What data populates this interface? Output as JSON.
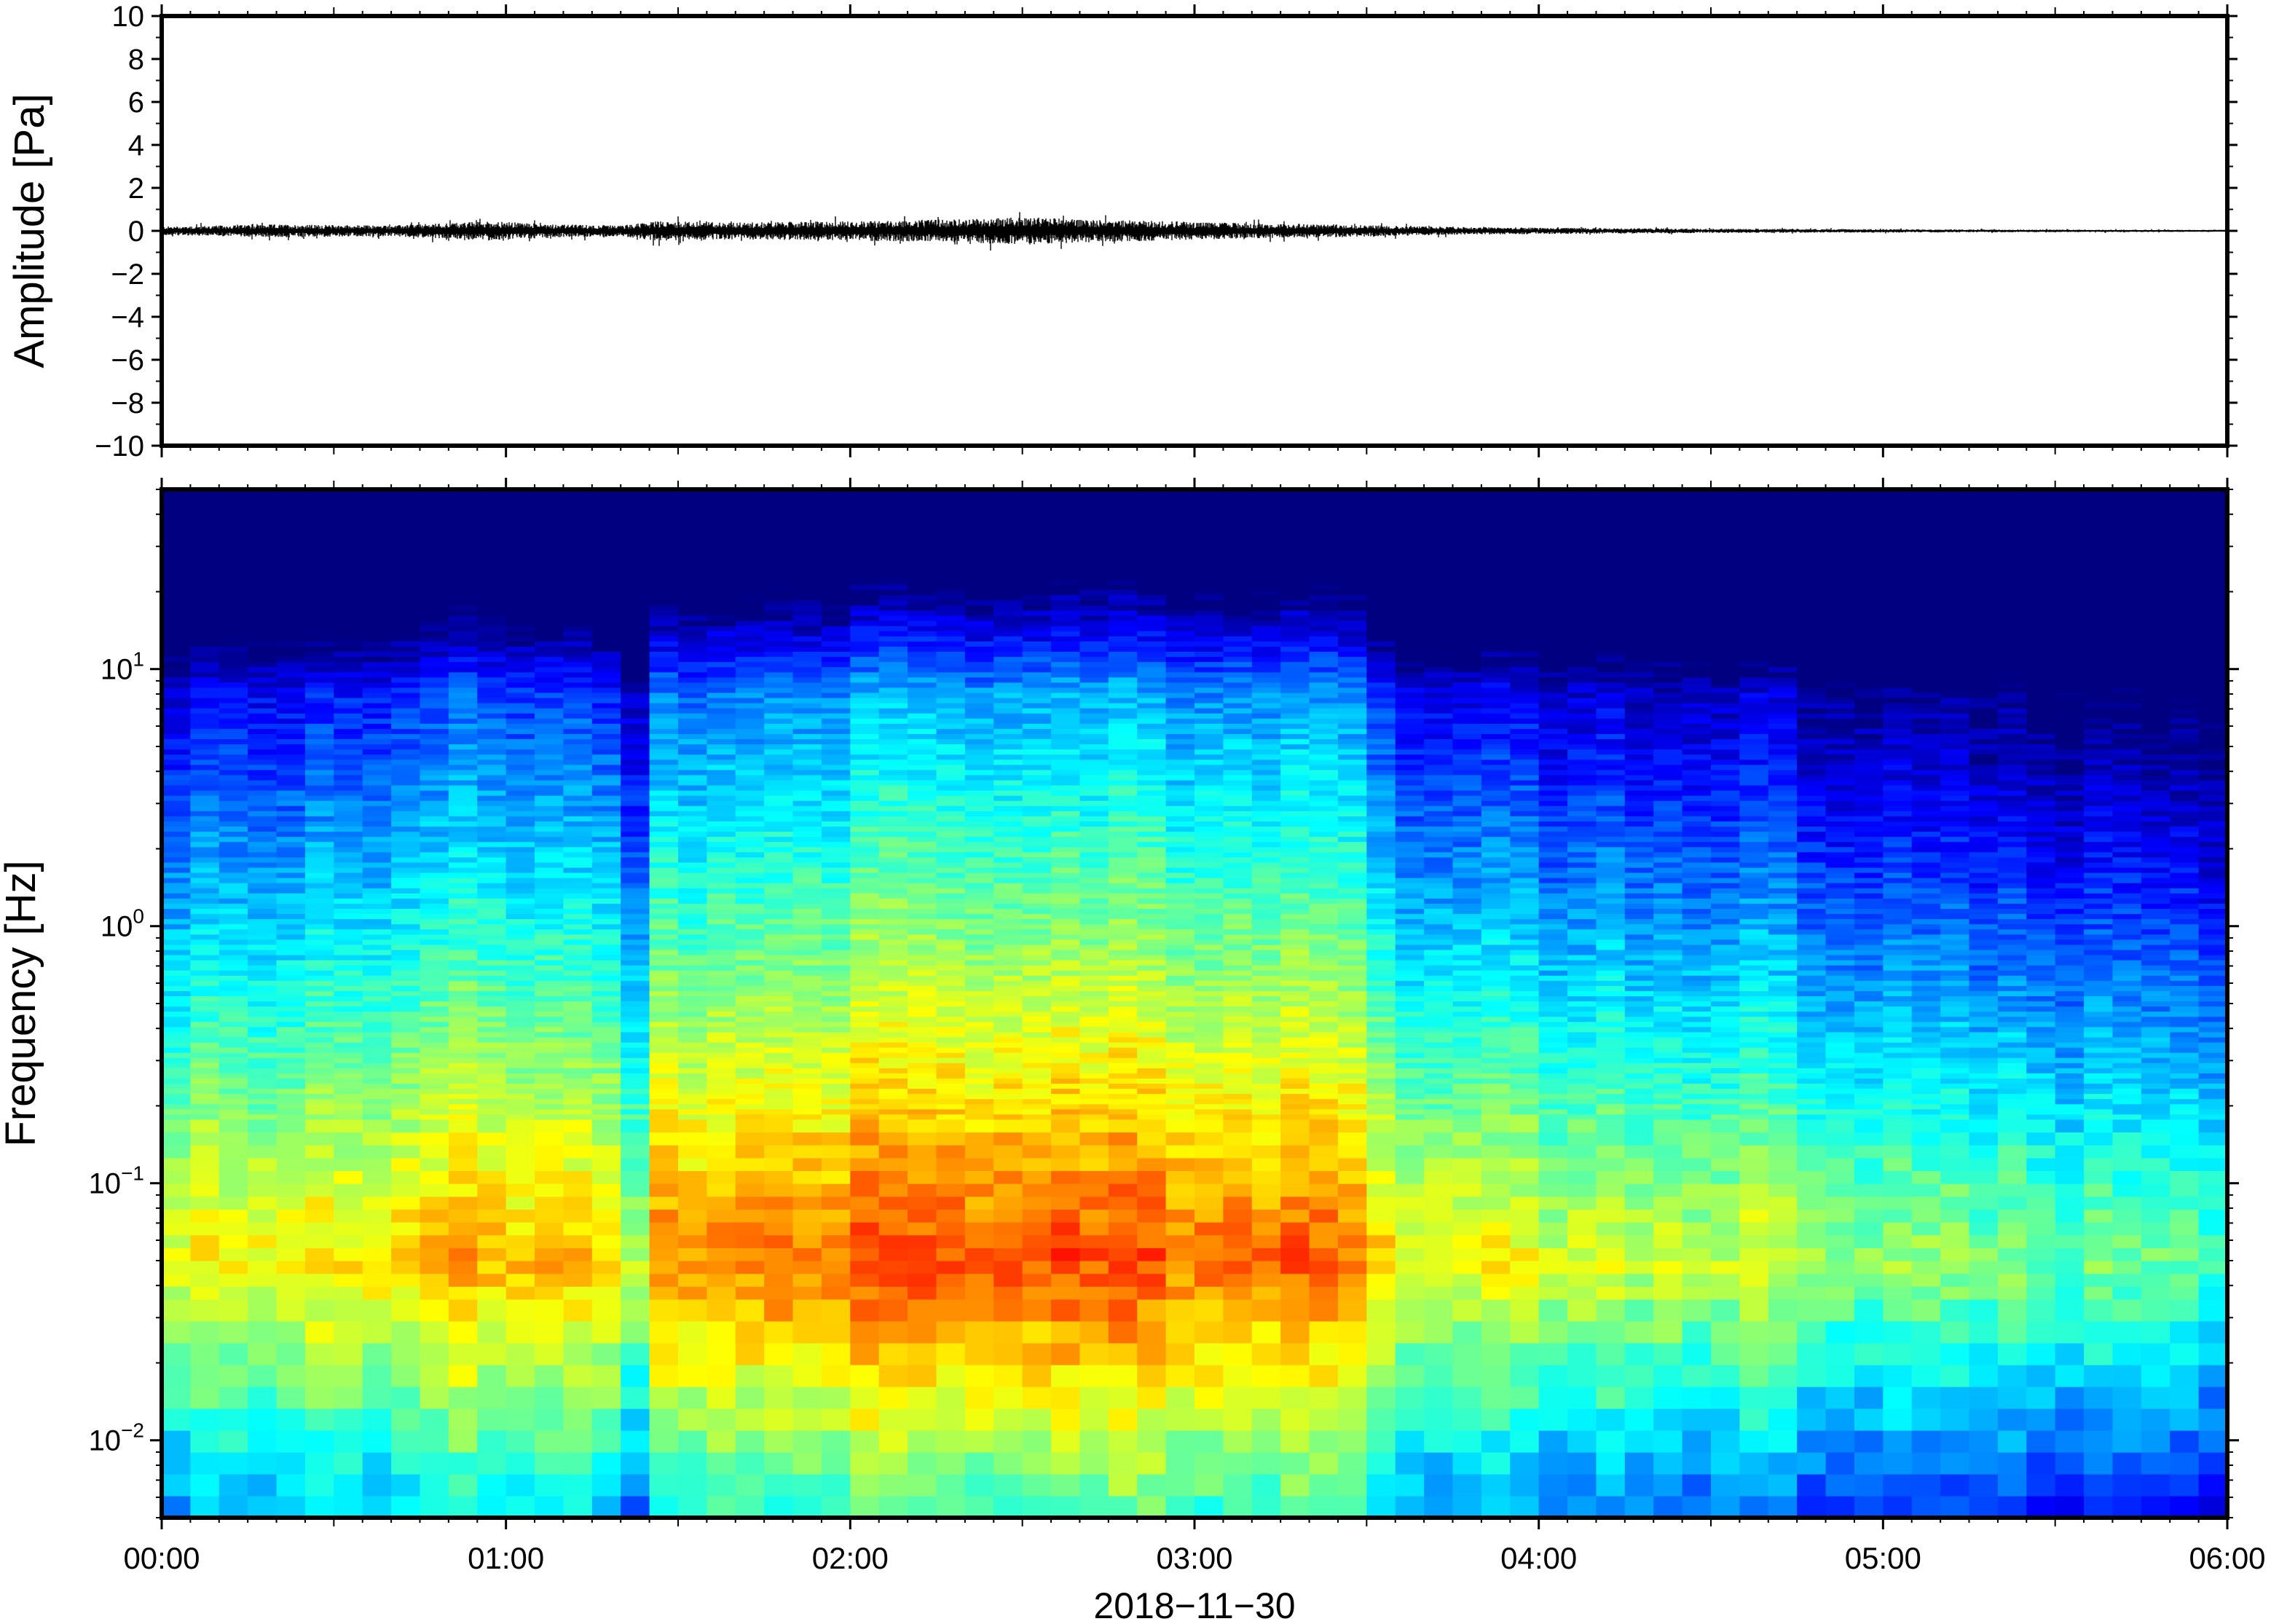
{
  "chart_data": [
    {
      "type": "line",
      "ylabel": "Amplitude [Pa]",
      "ylim": [
        -10,
        10
      ],
      "yticks": [
        10,
        8,
        6,
        4,
        2,
        0,
        -2,
        -4,
        -6,
        -8,
        -10
      ],
      "ytick_labels": [
        "10",
        "8",
        "6",
        "4",
        "2",
        "0",
        "−2",
        "−4",
        "−6",
        "−8",
        "−10"
      ],
      "xlim": [
        "00:00",
        "06:00"
      ],
      "envelope": {
        "time_minutes": [
          0,
          20,
          40,
          57,
          70,
          80,
          86,
          100,
          120,
          140,
          150,
          160,
          175,
          190,
          205,
          225,
          240,
          270,
          300,
          330,
          360
        ],
        "amplitude_pa": [
          0.2,
          0.3,
          0.25,
          0.45,
          0.3,
          0.25,
          0.45,
          0.4,
          0.45,
          0.55,
          0.65,
          0.55,
          0.45,
          0.35,
          0.3,
          0.18,
          0.15,
          0.1,
          0.08,
          0.06,
          0.05
        ]
      }
    },
    {
      "type": "heatmap",
      "ylabel": "Frequency [Hz]",
      "y_scale": "log",
      "ylim": [
        0.005,
        50
      ],
      "yticks": [
        0.01,
        0.1,
        1,
        10
      ],
      "ytick_labels": [
        {
          "base": "10",
          "exp": "−2"
        },
        {
          "base": "10",
          "exp": "−1"
        },
        {
          "base": "10",
          "exp": "0"
        },
        {
          "base": "10",
          "exp": "1"
        }
      ],
      "xlabel": "2018−11−30",
      "xlim": [
        "00:00",
        "06:00"
      ],
      "xtick_labels": [
        "00:00",
        "01:00",
        "02:00",
        "03:00",
        "04:00",
        "05:00",
        "06:00"
      ],
      "colormap": "jet",
      "colormap_colors": [
        "#00007f",
        "#0000ff",
        "#007fff",
        "#00ffff",
        "#7fff7f",
        "#ffff00",
        "#ff7f00",
        "#ff0000",
        "#7f0000"
      ],
      "time_columns": 72,
      "column_minutes": 5,
      "energy_profile": {
        "time_minutes": [
          0,
          30,
          55,
          80,
          82,
          87,
          120,
          150,
          200,
          210,
          214,
          240,
          270,
          283,
          286,
          290,
          310,
          330,
          360
        ],
        "level": [
          0.58,
          0.6,
          0.68,
          0.6,
          0.52,
          0.7,
          0.74,
          0.76,
          0.72,
          0.7,
          0.58,
          0.55,
          0.54,
          0.55,
          0.45,
          0.5,
          0.46,
          0.44,
          0.42
        ]
      }
    }
  ]
}
